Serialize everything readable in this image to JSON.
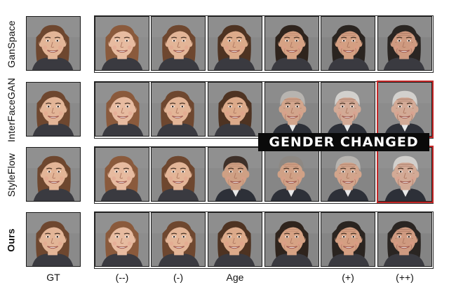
{
  "rows": [
    {
      "label": "GanSpace",
      "bold": false
    },
    {
      "label": "InterFaceGAN",
      "bold": false
    },
    {
      "label": "StyleFlow",
      "bold": false
    },
    {
      "label": "Ours",
      "bold": true
    }
  ],
  "column_labels": [
    "GT",
    "(--)",
    "(-)",
    "Age",
    "",
    "(+)",
    "(++)"
  ],
  "banner": "GENDER CHANGED",
  "colors": {
    "highlight": "#c62828",
    "banner_bg": "#0a0a0a"
  },
  "images": [
    [
      "face-female-young",
      "face-female-younger",
      "face-female-young",
      "face-female-adult",
      "face-female-older",
      "face-female-old",
      "face-female-elderly"
    ],
    [
      "face-female-young",
      "face-female-younger",
      "face-female-young",
      "face-female-adult",
      "face-male-old",
      "face-male-elderly",
      "face-male-elderly"
    ],
    [
      "face-female-young",
      "face-female-younger",
      "face-female-young",
      "face-male-adult",
      "face-male-older",
      "face-male-old",
      "face-male-elderly"
    ],
    [
      "face-female-young",
      "face-female-younger",
      "face-female-young",
      "face-female-adult",
      "face-female-older",
      "face-female-old",
      "face-female-elderly"
    ]
  ]
}
